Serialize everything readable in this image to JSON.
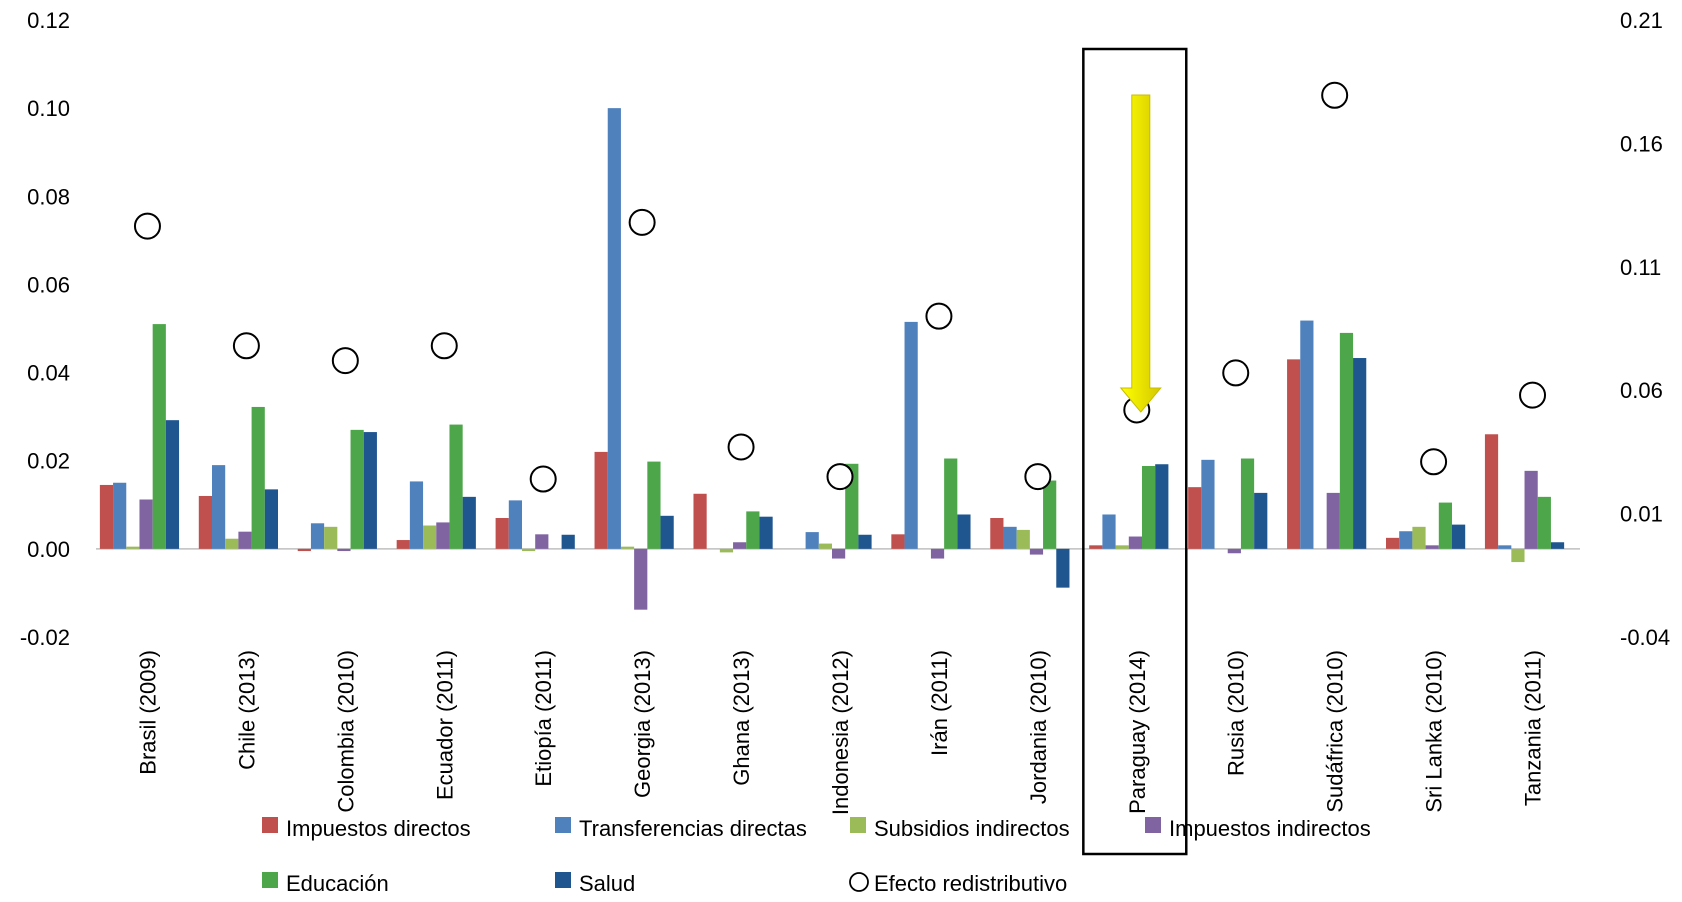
{
  "chart_data": {
    "type": "bar",
    "categories": [
      "Brasil (2009)",
      "Chile (2013)",
      "Colombia (2010)",
      "Ecuador (2011)",
      "Etiopía (2011)",
      "Georgia (2013)",
      "Ghana (2013)",
      "Indonesia (2012)",
      "Irán (2011)",
      "Jordania (2010)",
      "Paraguay (2014)",
      "Rusia (2010)",
      "Sudáfrica (2010)",
      "Sri Lanka (2010)",
      "Tanzania (2011)"
    ],
    "series": [
      {
        "name": "Impuestos directos",
        "color": "#C0504D",
        "values": [
          0.0145,
          0.012,
          -0.0005,
          0.002,
          0.007,
          0.022,
          0.0125,
          0.0,
          0.0033,
          0.007,
          0.0008,
          0.014,
          0.043,
          0.0025,
          0.026
        ]
      },
      {
        "name": "Transferencias directas",
        "color": "#4F81BD",
        "values": [
          0.015,
          0.019,
          0.0058,
          0.0153,
          0.011,
          0.1,
          0.0,
          0.0038,
          0.0515,
          0.005,
          0.0078,
          0.0202,
          0.0518,
          0.004,
          0.0008
        ]
      },
      {
        "name": "Subsidios indirectos",
        "color": "#9BBB59",
        "values": [
          0.0005,
          0.0023,
          0.005,
          0.0053,
          -0.0005,
          0.0005,
          -0.0008,
          0.0012,
          0.0,
          0.0043,
          0.0008,
          0.0,
          0.0,
          0.005,
          -0.003
        ]
      },
      {
        "name": "Impuestos indirectos",
        "color": "#8064A2",
        "values": [
          0.0112,
          0.0039,
          -0.0005,
          0.006,
          0.0033,
          -0.0138,
          0.0015,
          -0.0022,
          -0.0022,
          -0.0013,
          0.0028,
          -0.001,
          0.0127,
          0.0008,
          0.0177
        ]
      },
      {
        "name": "Educación",
        "color": "#4EA64A",
        "values": [
          0.051,
          0.0322,
          0.027,
          0.0282,
          0.0,
          0.0198,
          0.0085,
          0.0193,
          0.0205,
          0.0155,
          0.0188,
          0.0205,
          0.049,
          0.0105,
          0.0118
        ]
      },
      {
        "name": "Salud",
        "color": "#1F5690",
        "values": [
          0.0292,
          0.0135,
          0.0265,
          0.0118,
          0.0032,
          0.0075,
          0.0073,
          0.0032,
          0.0078,
          -0.0088,
          0.0192,
          0.0127,
          0.0433,
          0.0055,
          0.0015
        ]
      }
    ],
    "scatter_series": {
      "name": "Efecto redistributivo",
      "axis": "right",
      "values": [
        0.1265,
        0.078,
        0.072,
        0.078,
        0.024,
        0.128,
        0.037,
        0.025,
        0.09,
        0.025,
        0.052,
        0.067,
        0.1795,
        0.031,
        0.058
      ]
    },
    "ylim": [
      -0.02,
      0.12
    ],
    "y_ticks": [
      "-0.02",
      "0.00",
      "0.02",
      "0.04",
      "0.06",
      "0.08",
      "0.10",
      "0.12"
    ],
    "y2lim": [
      -0.04,
      0.21
    ],
    "y2_ticks": [
      "-0.04",
      "0.01",
      "0.06",
      "0.11",
      "0.16",
      "0.21"
    ],
    "legend": {
      "position": "bottom"
    },
    "grid": false,
    "highlight": {
      "category": "Paraguay (2014)",
      "arrow_color": "#FFFF00"
    }
  }
}
